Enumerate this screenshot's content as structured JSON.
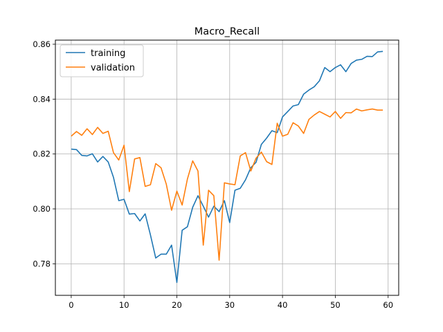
{
  "chart_data": {
    "type": "line",
    "title": "Macro_Recall",
    "xlabel": "",
    "ylabel": "",
    "xlim": [
      -3,
      62
    ],
    "ylim": [
      0.7685,
      0.8615
    ],
    "xticks": [
      0,
      10,
      20,
      30,
      40,
      50,
      60
    ],
    "yticks": [
      0.78,
      0.8,
      0.82,
      0.84,
      0.86
    ],
    "ytick_labels": [
      "0.78",
      "0.80",
      "0.82",
      "0.84",
      "0.86"
    ],
    "grid": true,
    "legend_position": "top-left",
    "x": [
      0,
      1,
      2,
      3,
      4,
      5,
      6,
      7,
      8,
      9,
      10,
      11,
      12,
      13,
      14,
      15,
      16,
      17,
      18,
      19,
      20,
      21,
      22,
      23,
      24,
      25,
      26,
      27,
      28,
      29,
      30,
      31,
      32,
      33,
      34,
      35,
      36,
      37,
      38,
      39,
      40,
      41,
      42,
      43,
      44,
      45,
      46,
      47,
      48,
      49,
      50,
      51,
      52,
      53,
      54,
      55,
      56,
      57,
      58,
      59
    ],
    "series": [
      {
        "name": "training",
        "color": "#1f77b4",
        "values": [
          0.8218,
          0.8216,
          0.8195,
          0.8193,
          0.8201,
          0.8171,
          0.8191,
          0.8171,
          0.8115,
          0.803,
          0.8035,
          0.7981,
          0.7983,
          0.7956,
          0.7982,
          0.7905,
          0.7821,
          0.7835,
          0.7835,
          0.7868,
          0.7732,
          0.7922,
          0.7935,
          0.8006,
          0.8048,
          0.801,
          0.797,
          0.801,
          0.799,
          0.803,
          0.795,
          0.8068,
          0.8075,
          0.8106,
          0.815,
          0.817,
          0.8235,
          0.8258,
          0.8285,
          0.8278,
          0.8335,
          0.8355,
          0.8375,
          0.838,
          0.8418,
          0.8433,
          0.8445,
          0.8467,
          0.8515,
          0.85,
          0.8515,
          0.8525,
          0.85,
          0.853,
          0.8542,
          0.8545,
          0.8556,
          0.8555,
          0.8572,
          0.8574
        ]
      },
      {
        "name": "validation",
        "color": "#ff7f0e",
        "values": [
          0.8265,
          0.8282,
          0.8268,
          0.8292,
          0.8271,
          0.8297,
          0.8275,
          0.8283,
          0.8205,
          0.8178,
          0.8232,
          0.8063,
          0.8182,
          0.8187,
          0.8082,
          0.8088,
          0.8165,
          0.815,
          0.809,
          0.7995,
          0.8065,
          0.8014,
          0.8109,
          0.8175,
          0.8138,
          0.7868,
          0.8068,
          0.8048,
          0.7813,
          0.8095,
          0.8091,
          0.8088,
          0.8193,
          0.8205,
          0.8138,
          0.8185,
          0.8207,
          0.8172,
          0.8162,
          0.8312,
          0.8265,
          0.8272,
          0.8314,
          0.8302,
          0.8275,
          0.8326,
          0.8342,
          0.8355,
          0.8345,
          0.8335,
          0.8355,
          0.833,
          0.8351,
          0.835,
          0.8364,
          0.8357,
          0.8361,
          0.8364,
          0.836,
          0.836
        ]
      }
    ]
  }
}
